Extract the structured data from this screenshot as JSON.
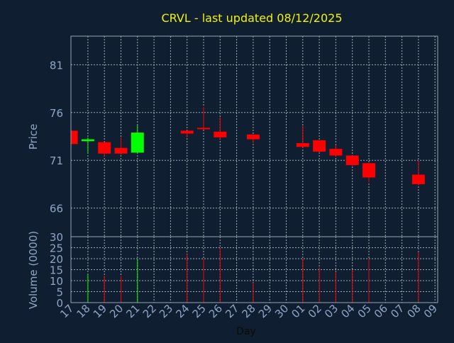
{
  "colors": {
    "background": "#0f1e30",
    "frame": "#9aa4b0",
    "grid": "#c8ccd2",
    "title": "#f2f20a",
    "tick_label": "#8fa6c4",
    "axis_label": "#8fa6c4",
    "xlabel": "#0a0a0a",
    "up": "#00ff00",
    "down": "#ff0000"
  },
  "chart_data": {
    "type": "candlestick",
    "title": "CRVL - last updated 08/12/2025",
    "xlabel": "Day",
    "price_panel": {
      "ylabel": "Price",
      "ylim": [
        63,
        84
      ],
      "yticks": [
        66,
        71,
        76,
        81
      ],
      "grid": true
    },
    "volume_panel": {
      "ylabel": "Volume (0000)",
      "ylim": [
        0,
        30
      ],
      "yticks": [
        0,
        5,
        10,
        15,
        20,
        25,
        30
      ],
      "grid": true
    },
    "x_ticks": [
      "17",
      "18",
      "19",
      "20",
      "21",
      "22",
      "23",
      "24",
      "25",
      "26",
      "27",
      "28",
      "29",
      "30",
      "01",
      "02",
      "03",
      "04",
      "05",
      "06",
      "07",
      "08",
      "09"
    ],
    "candles": [
      {
        "day": "17",
        "open": 74.1,
        "high": 74.1,
        "low": 72.7,
        "close": 72.7,
        "volume": 0
      },
      {
        "day": "18",
        "open": 73.0,
        "high": 73.4,
        "low": 71.7,
        "close": 73.2,
        "volume": 13
      },
      {
        "day": "19",
        "open": 72.9,
        "high": 72.9,
        "low": 71.4,
        "close": 71.7,
        "volume": 12
      },
      {
        "day": "20",
        "open": 72.3,
        "high": 73.4,
        "low": 71.6,
        "close": 71.7,
        "volume": 12
      },
      {
        "day": "21",
        "open": 71.8,
        "high": 74.7,
        "low": 71.8,
        "close": 73.9,
        "volume": 20
      },
      {
        "day": "24",
        "open": 74.1,
        "high": 74.1,
        "low": 73.4,
        "close": 73.8,
        "volume": 22
      },
      {
        "day": "25",
        "open": 74.4,
        "high": 76.6,
        "low": 74.2,
        "close": 74.3,
        "volume": 20
      },
      {
        "day": "26",
        "open": 74.0,
        "high": 75.5,
        "low": 73.1,
        "close": 73.4,
        "volume": 25
      },
      {
        "day": "28",
        "open": 73.7,
        "high": 73.7,
        "low": 72.8,
        "close": 73.2,
        "volume": 9
      },
      {
        "day": "01",
        "open": 72.8,
        "high": 74.6,
        "low": 72.3,
        "close": 72.4,
        "volume": 20
      },
      {
        "day": "02",
        "open": 73.1,
        "high": 73.1,
        "low": 71.8,
        "close": 71.9,
        "volume": 16
      },
      {
        "day": "03",
        "open": 72.2,
        "high": 72.6,
        "low": 71.4,
        "close": 71.5,
        "volume": 14
      },
      {
        "day": "04",
        "open": 71.5,
        "high": 71.5,
        "low": 70.4,
        "close": 70.5,
        "volume": 15
      },
      {
        "day": "05",
        "open": 70.7,
        "high": 70.7,
        "low": 68.7,
        "close": 69.2,
        "volume": 20
      },
      {
        "day": "08",
        "open": 69.5,
        "high": 71.0,
        "low": 68.4,
        "close": 68.5,
        "volume": 23
      }
    ]
  }
}
